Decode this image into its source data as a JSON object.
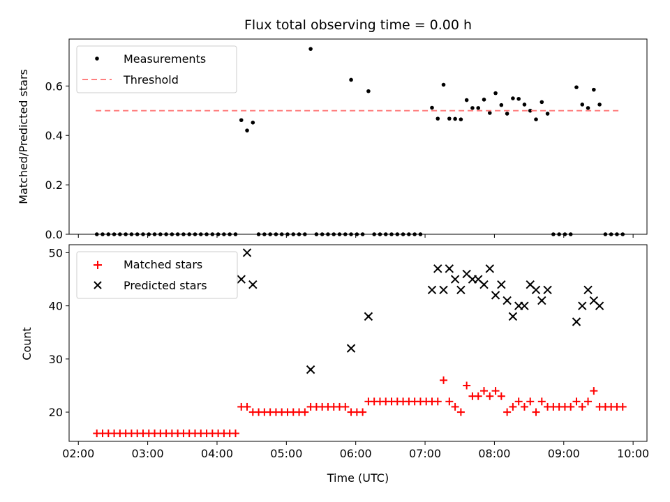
{
  "figure": {
    "title": "Flux total observing time = 0.00 h"
  },
  "chart_data": [
    {
      "type": "scatter",
      "panel": "top",
      "ylabel": "Matched/Predicted stars",
      "xlabel": "",
      "xlim": [
        "01:52",
        "10:12"
      ],
      "ylim": [
        0,
        0.79
      ],
      "yticks": [
        0.0,
        0.2,
        0.4,
        0.6
      ],
      "ytick_labels": [
        "0.0",
        "0.2",
        "0.4",
        "0.6"
      ],
      "xticks": [
        "02:00",
        "03:00",
        "04:00",
        "05:00",
        "06:00",
        "07:00",
        "08:00",
        "09:00",
        "10:00"
      ],
      "show_xtick_labels": false,
      "grid": false,
      "legend": {
        "placement": "upper-left",
        "entries": [
          "Measurements",
          "Threshold"
        ]
      },
      "threshold": {
        "name": "Threshold",
        "value": 0.5,
        "x_start": "02:15",
        "x_end": "09:50",
        "color": "#ff7f7f",
        "style": "dashed"
      },
      "series": [
        {
          "name": "Measurements",
          "color": "#000000",
          "marker": "dot",
          "points": [
            [
              "02:16",
              0.0
            ],
            [
              "02:21",
              0.0
            ],
            [
              "02:26",
              0.0
            ],
            [
              "02:31",
              0.0
            ],
            [
              "02:36",
              0.0
            ],
            [
              "02:41",
              0.0
            ],
            [
              "02:46",
              0.0
            ],
            [
              "02:51",
              0.0
            ],
            [
              "02:56",
              0.0
            ],
            [
              "03:01",
              0.0
            ],
            [
              "03:06",
              0.0
            ],
            [
              "03:11",
              0.0
            ],
            [
              "03:16",
              0.0
            ],
            [
              "03:21",
              0.0
            ],
            [
              "03:26",
              0.0
            ],
            [
              "03:31",
              0.0
            ],
            [
              "03:36",
              0.0
            ],
            [
              "03:41",
              0.0
            ],
            [
              "03:46",
              0.0
            ],
            [
              "03:51",
              0.0
            ],
            [
              "03:56",
              0.0
            ],
            [
              "04:01",
              0.0
            ],
            [
              "04:06",
              0.0
            ],
            [
              "04:11",
              0.0
            ],
            [
              "04:16",
              0.0
            ],
            [
              "04:21",
              0.462
            ],
            [
              "04:26",
              0.42
            ],
            [
              "04:31",
              0.452
            ],
            [
              "04:36",
              0.0
            ],
            [
              "04:41",
              0.0
            ],
            [
              "04:46",
              0.0
            ],
            [
              "04:51",
              0.0
            ],
            [
              "04:56",
              0.0
            ],
            [
              "05:01",
              0.0
            ],
            [
              "05:06",
              0.0
            ],
            [
              "05:11",
              0.0
            ],
            [
              "05:16",
              0.0
            ],
            [
              "05:21",
              0.75
            ],
            [
              "05:26",
              0.0
            ],
            [
              "05:31",
              0.0
            ],
            [
              "05:36",
              0.0
            ],
            [
              "05:41",
              0.0
            ],
            [
              "05:46",
              0.0
            ],
            [
              "05:51",
              0.0
            ],
            [
              "05:56",
              0.0
            ],
            [
              "05:56",
              0.625
            ],
            [
              "06:01",
              0.0
            ],
            [
              "06:06",
              0.0
            ],
            [
              "06:11",
              0.579
            ],
            [
              "06:16",
              0.0
            ],
            [
              "06:21",
              0.0
            ],
            [
              "06:26",
              0.0
            ],
            [
              "06:31",
              0.0
            ],
            [
              "06:36",
              0.0
            ],
            [
              "06:41",
              0.0
            ],
            [
              "06:46",
              0.0
            ],
            [
              "06:51",
              0.0
            ],
            [
              "06:56",
              0.0
            ],
            [
              "07:06",
              0.512
            ],
            [
              "07:11",
              0.468
            ],
            [
              "07:16",
              0.605
            ],
            [
              "07:21",
              0.468
            ],
            [
              "07:26",
              0.467
            ],
            [
              "07:31",
              0.465
            ],
            [
              "07:36",
              0.543
            ],
            [
              "07:41",
              0.511
            ],
            [
              "07:46",
              0.511
            ],
            [
              "07:51",
              0.545
            ],
            [
              "07:56",
              0.491
            ],
            [
              "08:01",
              0.571
            ],
            [
              "08:06",
              0.523
            ],
            [
              "08:11",
              0.488
            ],
            [
              "08:16",
              0.55
            ],
            [
              "08:21",
              0.548
            ],
            [
              "08:26",
              0.525
            ],
            [
              "08:31",
              0.5
            ],
            [
              "08:36",
              0.465
            ],
            [
              "08:41",
              0.535
            ],
            [
              "08:46",
              0.488
            ],
            [
              "08:51",
              0.0
            ],
            [
              "08:56",
              0.0
            ],
            [
              "09:01",
              0.0
            ],
            [
              "09:06",
              0.0
            ],
            [
              "09:11",
              0.595
            ],
            [
              "09:16",
              0.525
            ],
            [
              "09:21",
              0.511
            ],
            [
              "09:26",
              0.585
            ],
            [
              "09:31",
              0.525
            ],
            [
              "09:36",
              0.0
            ],
            [
              "09:41",
              0.0
            ],
            [
              "09:46",
              0.0
            ],
            [
              "09:51",
              0.0
            ]
          ]
        }
      ]
    },
    {
      "type": "scatter",
      "panel": "bottom",
      "xlabel": "Time (UTC)",
      "ylabel": "Count",
      "xlim": [
        "01:52",
        "10:12"
      ],
      "ylim": [
        14.5,
        51.5
      ],
      "yticks": [
        20,
        30,
        40,
        50
      ],
      "ytick_labels": [
        "20",
        "30",
        "40",
        "50"
      ],
      "xticks": [
        "02:00",
        "03:00",
        "04:00",
        "05:00",
        "06:00",
        "07:00",
        "08:00",
        "09:00",
        "10:00"
      ],
      "xtick_labels": [
        "02:00",
        "03:00",
        "04:00",
        "05:00",
        "06:00",
        "07:00",
        "08:00",
        "09:00",
        "10:00"
      ],
      "grid": false,
      "legend": {
        "placement": "upper-left",
        "entries": [
          "Matched stars",
          "Predicted stars"
        ]
      },
      "series": [
        {
          "name": "Matched stars",
          "color": "#ff0000",
          "marker": "plus",
          "points": [
            [
              "02:16",
              16
            ],
            [
              "02:21",
              16
            ],
            [
              "02:26",
              16
            ],
            [
              "02:31",
              16
            ],
            [
              "02:36",
              16
            ],
            [
              "02:41",
              16
            ],
            [
              "02:46",
              16
            ],
            [
              "02:51",
              16
            ],
            [
              "02:56",
              16
            ],
            [
              "03:01",
              16
            ],
            [
              "03:06",
              16
            ],
            [
              "03:11",
              16
            ],
            [
              "03:16",
              16
            ],
            [
              "03:21",
              16
            ],
            [
              "03:26",
              16
            ],
            [
              "03:31",
              16
            ],
            [
              "03:36",
              16
            ],
            [
              "03:41",
              16
            ],
            [
              "03:46",
              16
            ],
            [
              "03:51",
              16
            ],
            [
              "03:56",
              16
            ],
            [
              "04:01",
              16
            ],
            [
              "04:06",
              16
            ],
            [
              "04:11",
              16
            ],
            [
              "04:16",
              16
            ],
            [
              "04:21",
              21
            ],
            [
              "04:26",
              21
            ],
            [
              "04:31",
              20
            ],
            [
              "04:36",
              20
            ],
            [
              "04:41",
              20
            ],
            [
              "04:46",
              20
            ],
            [
              "04:51",
              20
            ],
            [
              "04:56",
              20
            ],
            [
              "05:01",
              20
            ],
            [
              "05:06",
              20
            ],
            [
              "05:11",
              20
            ],
            [
              "05:16",
              20
            ],
            [
              "05:21",
              21
            ],
            [
              "05:26",
              21
            ],
            [
              "05:31",
              21
            ],
            [
              "05:36",
              21
            ],
            [
              "05:41",
              21
            ],
            [
              "05:46",
              21
            ],
            [
              "05:51",
              21
            ],
            [
              "05:56",
              20
            ],
            [
              "06:01",
              20
            ],
            [
              "06:06",
              20
            ],
            [
              "06:11",
              22
            ],
            [
              "06:16",
              22
            ],
            [
              "06:21",
              22
            ],
            [
              "06:26",
              22
            ],
            [
              "06:31",
              22
            ],
            [
              "06:36",
              22
            ],
            [
              "06:41",
              22
            ],
            [
              "06:46",
              22
            ],
            [
              "06:51",
              22
            ],
            [
              "06:56",
              22
            ],
            [
              "07:01",
              22
            ],
            [
              "07:06",
              22
            ],
            [
              "07:11",
              22
            ],
            [
              "07:16",
              26
            ],
            [
              "07:21",
              22
            ],
            [
              "07:26",
              21
            ],
            [
              "07:31",
              20
            ],
            [
              "07:36",
              25
            ],
            [
              "07:41",
              23
            ],
            [
              "07:46",
              23
            ],
            [
              "07:51",
              24
            ],
            [
              "07:56",
              23
            ],
            [
              "08:01",
              24
            ],
            [
              "08:06",
              23
            ],
            [
              "08:11",
              20
            ],
            [
              "08:16",
              21
            ],
            [
              "08:21",
              22
            ],
            [
              "08:26",
              21
            ],
            [
              "08:31",
              22
            ],
            [
              "08:36",
              20
            ],
            [
              "08:41",
              22
            ],
            [
              "08:46",
              21
            ],
            [
              "08:51",
              21
            ],
            [
              "08:56",
              21
            ],
            [
              "09:01",
              21
            ],
            [
              "09:06",
              21
            ],
            [
              "09:11",
              22
            ],
            [
              "09:16",
              21
            ],
            [
              "09:21",
              22
            ],
            [
              "09:26",
              24
            ],
            [
              "09:31",
              21
            ],
            [
              "09:36",
              21
            ],
            [
              "09:41",
              21
            ],
            [
              "09:46",
              21
            ],
            [
              "09:51",
              21
            ]
          ]
        },
        {
          "name": "Predicted stars",
          "color": "#000000",
          "marker": "x",
          "points": [
            [
              "04:21",
              45
            ],
            [
              "04:26",
              50
            ],
            [
              "04:31",
              44
            ],
            [
              "05:21",
              28
            ],
            [
              "05:56",
              32
            ],
            [
              "06:11",
              38
            ],
            [
              "07:06",
              43
            ],
            [
              "07:11",
              47
            ],
            [
              "07:16",
              43
            ],
            [
              "07:21",
              47
            ],
            [
              "07:26",
              45
            ],
            [
              "07:31",
              43
            ],
            [
              "07:36",
              46
            ],
            [
              "07:41",
              45
            ],
            [
              "07:46",
              45
            ],
            [
              "07:51",
              44
            ],
            [
              "07:56",
              47
            ],
            [
              "08:01",
              42
            ],
            [
              "08:06",
              44
            ],
            [
              "08:11",
              41
            ],
            [
              "08:16",
              38
            ],
            [
              "08:21",
              40
            ],
            [
              "08:26",
              40
            ],
            [
              "08:31",
              44
            ],
            [
              "08:36",
              43
            ],
            [
              "08:41",
              41
            ],
            [
              "08:46",
              43
            ],
            [
              "09:11",
              37
            ],
            [
              "09:16",
              40
            ],
            [
              "09:21",
              43
            ],
            [
              "09:26",
              41
            ],
            [
              "09:31",
              40
            ]
          ]
        }
      ]
    }
  ]
}
